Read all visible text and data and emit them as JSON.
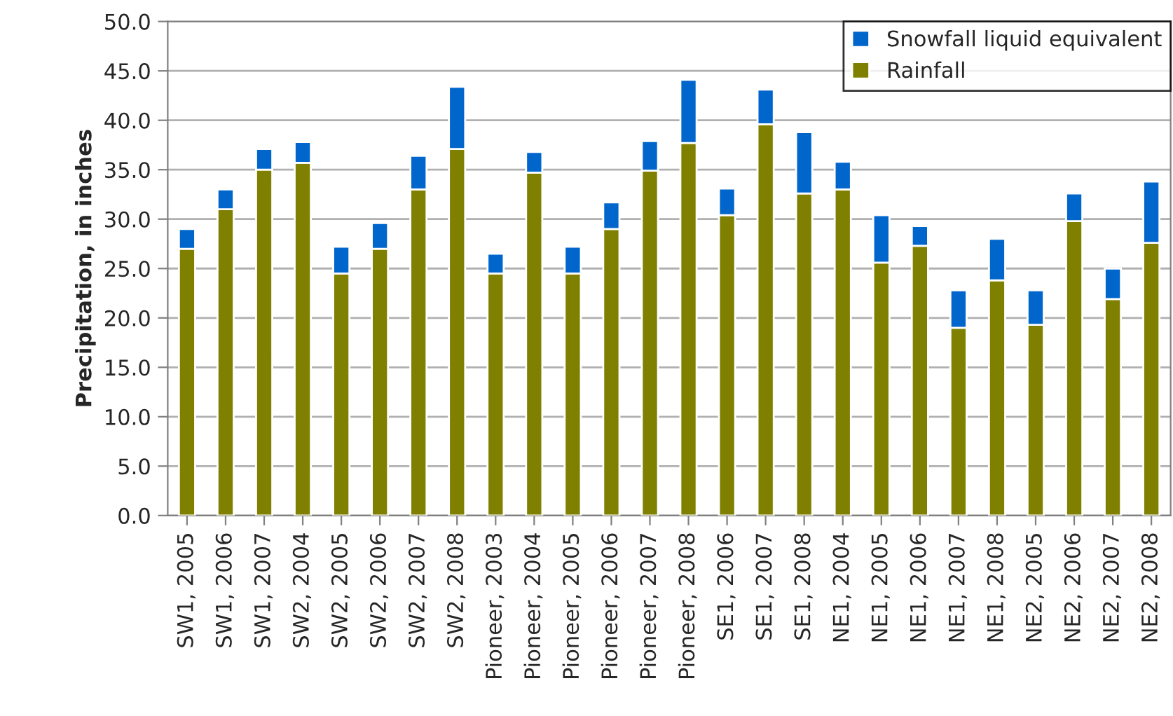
{
  "chart_data": {
    "type": "bar",
    "stacked": true,
    "ylabel": "Precipitation, in inches",
    "categories": [
      "SW1, 2005",
      "SW1, 2006",
      "SW1, 2007",
      "SW2, 2004",
      "SW2, 2005",
      "SW2, 2006",
      "SW2, 2007",
      "SW2, 2008",
      "Pioneer, 2003",
      "Pioneer, 2004",
      "Pioneer, 2005",
      "Pioneer, 2006",
      "Pioneer, 2007",
      "Pioneer, 2008",
      "SE1, 2006",
      "SE1, 2007",
      "SE1, 2008",
      "NE1, 2004",
      "NE1, 2005",
      "NE1, 2006",
      "NE1, 2007",
      "NE1, 2008",
      "NE2, 2005",
      "NE2, 2006",
      "NE2, 2007",
      "NE2, 2008"
    ],
    "series": [
      {
        "name": "Rainfall",
        "color": "#808000",
        "values": [
          27.0,
          31.0,
          35.0,
          35.7,
          24.5,
          27.0,
          33.0,
          37.1,
          24.5,
          34.7,
          24.5,
          29.0,
          34.9,
          37.7,
          30.4,
          39.6,
          32.6,
          33.0,
          25.6,
          27.3,
          19.0,
          23.8,
          19.3,
          29.8,
          21.9,
          27.6
        ]
      },
      {
        "name": "Snowfall liquid equivalent",
        "color": "#0066cc",
        "values": [
          2.0,
          2.0,
          2.1,
          2.1,
          2.7,
          2.6,
          3.4,
          6.3,
          2.0,
          2.1,
          2.7,
          2.7,
          3.0,
          6.4,
          2.7,
          3.5,
          6.2,
          2.8,
          4.8,
          2.0,
          3.8,
          4.2,
          3.5,
          2.8,
          3.1,
          6.2
        ]
      }
    ],
    "ylim": [
      0,
      50
    ],
    "yticks": [
      {
        "value": 0,
        "label": "0.0"
      },
      {
        "value": 5,
        "label": "5.0"
      },
      {
        "value": 10,
        "label": "10.0"
      },
      {
        "value": 15,
        "label": "15.0"
      },
      {
        "value": 20,
        "label": "20.0"
      },
      {
        "value": 25,
        "label": "25.0"
      },
      {
        "value": 30,
        "label": "30.0"
      },
      {
        "value": 35,
        "label": "35.0"
      },
      {
        "value": 40,
        "label": "40.0"
      },
      {
        "value": 45,
        "label": "45.0"
      },
      {
        "value": 50,
        "label": "50.0"
      }
    ],
    "grid": "y",
    "legend": "top right"
  }
}
